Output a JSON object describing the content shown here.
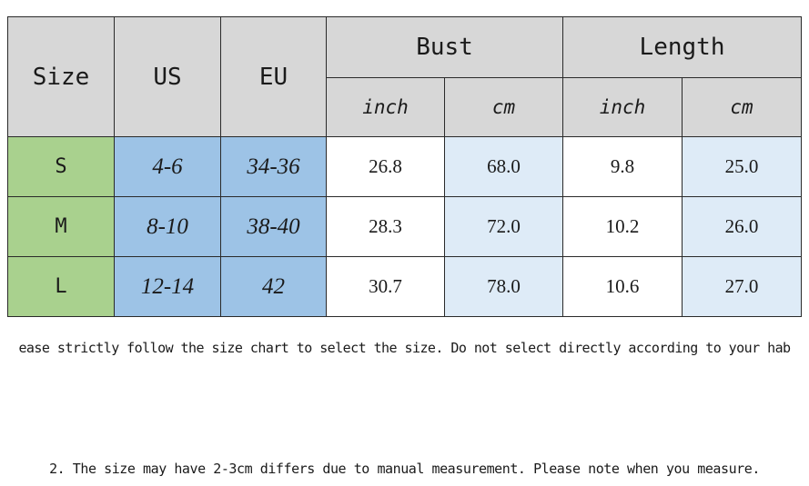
{
  "table": {
    "headers": {
      "size": "Size",
      "us": "US",
      "eu": "EU",
      "bust": "Bust",
      "length": "Length",
      "units": [
        "inch",
        "cm",
        "inch",
        "cm"
      ]
    },
    "rows": [
      {
        "size": "S",
        "us": "4-6",
        "eu": "34-36",
        "bust_inch": "26.8",
        "bust_cm": "68.0",
        "length_inch": "9.8",
        "length_cm": "25.0"
      },
      {
        "size": "M",
        "us": "8-10",
        "eu": "38-40",
        "bust_inch": "28.3",
        "bust_cm": "72.0",
        "length_inch": "10.2",
        "length_cm": "26.0"
      },
      {
        "size": "L",
        "us": "12-14",
        "eu": "42",
        "bust_inch": "30.7",
        "bust_cm": "78.0",
        "length_inch": "10.6",
        "length_cm": "27.0"
      }
    ]
  },
  "notes": {
    "line1": "ease strictly follow the size chart to select the size. Do not select directly according to your hab",
    "line2": "2. The size may have 2-3cm differs due to manual measurement. Please note when you measure."
  },
  "colors": {
    "header_gray": "#d7d7d7",
    "size_green": "#a9d18e",
    "us_eu_blue": "#9dc3e6",
    "cm_light_blue": "#deebf7"
  }
}
